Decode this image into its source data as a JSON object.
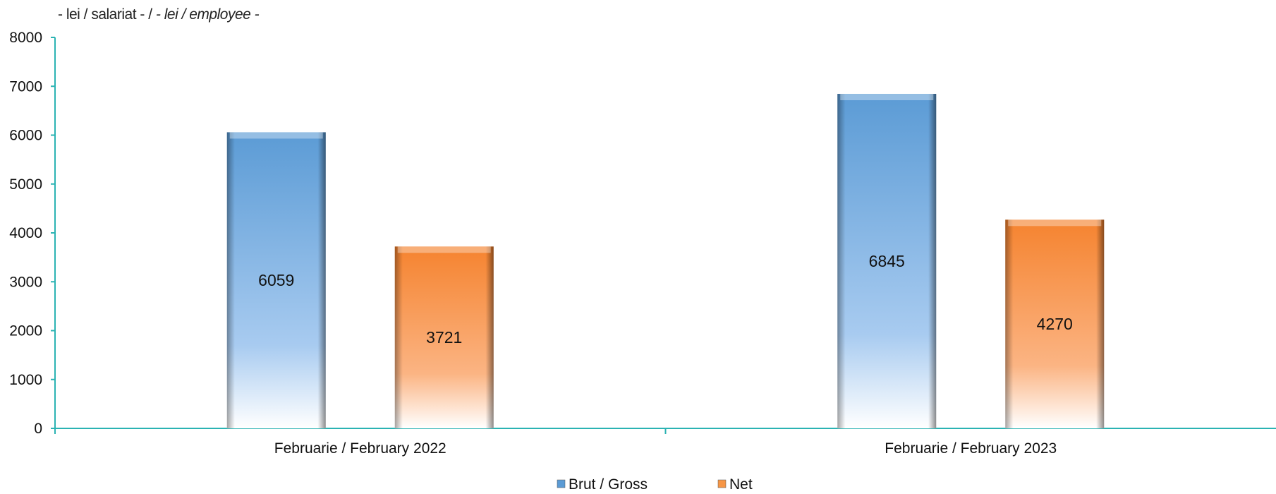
{
  "unit_label": {
    "ro": "- lei / salariat -",
    "sep": "/",
    "en": "- lei / employee -"
  },
  "colors": {
    "axis": "#2bb3b3",
    "gross": "#5b9bd5",
    "net": "#f79646"
  },
  "chart_data": {
    "type": "bar",
    "categories": [
      "Februarie / February 2022",
      "Februarie / February 2023"
    ],
    "series": [
      {
        "name": "Brut / Gross",
        "values": [
          6059,
          3721
        ]
      },
      {
        "name": "Net",
        "values": [
          6845,
          4270
        ]
      }
    ],
    "ylim": [
      0,
      8000
    ],
    "yticks": [
      0,
      1000,
      2000,
      3000,
      4000,
      5000,
      6000,
      7000,
      8000
    ],
    "legend": "bottom-center",
    "grid": false
  }
}
